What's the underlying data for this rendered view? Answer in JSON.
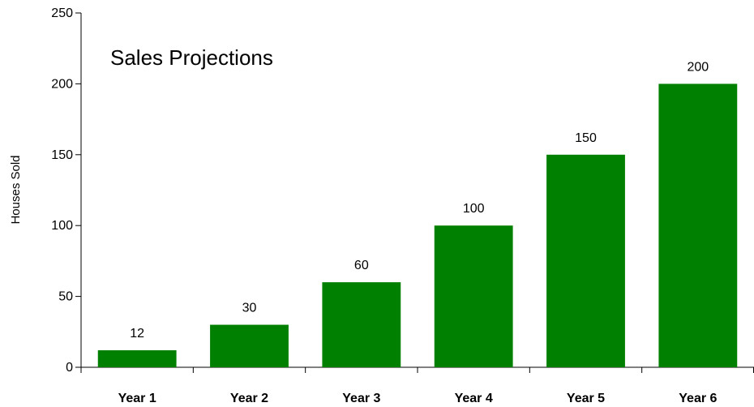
{
  "chart_data": {
    "type": "bar",
    "title": "Sales Projections",
    "xlabel": "",
    "ylabel": "Houses Sold",
    "categories": [
      "Year 1",
      "Year 2",
      "Year 3",
      "Year 4",
      "Year 5",
      "Year 6"
    ],
    "values": [
      12,
      30,
      60,
      100,
      150,
      200
    ],
    "data_labels": [
      "12",
      "30",
      "60",
      "100",
      "150",
      "200"
    ],
    "ylim": [
      0,
      250
    ],
    "yticks": [
      0,
      50,
      100,
      150,
      200,
      250
    ],
    "ytick_labels": [
      "0",
      "50",
      "100",
      "150",
      "200",
      "250"
    ],
    "grid": false,
    "legend": "none",
    "bar_color": "#008000"
  }
}
